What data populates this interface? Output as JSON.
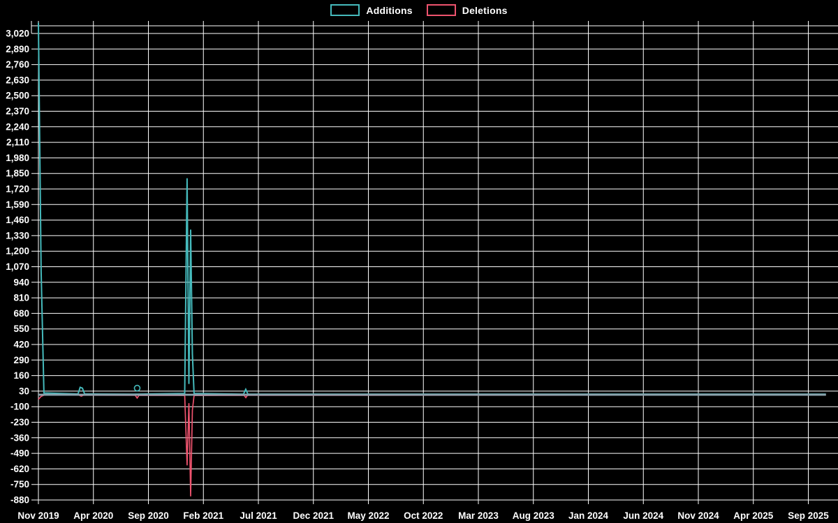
{
  "legend": {
    "additions": "Additions",
    "deletions": "Deletions"
  },
  "colors": {
    "background": "#000000",
    "grid": "#ffffff",
    "text": "#ffffff",
    "additions": "#45babc",
    "deletions": "#ee536e",
    "zero_line": "#8ba2ad"
  },
  "chart_data": {
    "type": "line",
    "title": "",
    "xlabel": "",
    "ylabel": "",
    "legend_position": "top",
    "grid": true,
    "x_unit": "months since Nov 2019",
    "x_ticks": [
      "Nov 2019",
      "Apr 2020",
      "Sep 2020",
      "Feb 2021",
      "Jul 2021",
      "Dec 2021",
      "May 2022",
      "Oct 2022",
      "Mar 2023",
      "Aug 2023",
      "Jan 2024",
      "Jun 2024",
      "Nov 2024",
      "Apr 2025",
      "Sep 2025"
    ],
    "y_ticks": [
      3020,
      2890,
      2760,
      2630,
      2500,
      2370,
      2240,
      2110,
      1980,
      1850,
      1720,
      1590,
      1460,
      1330,
      1200,
      1070,
      940,
      810,
      680,
      550,
      420,
      290,
      160,
      30,
      -100,
      -230,
      -360,
      -490,
      -620,
      -750,
      -880
    ],
    "ylim": [
      -880,
      3110
    ],
    "xlim_months": [
      0,
      71.6
    ],
    "series": [
      {
        "name": "Additions",
        "color": "#45babc",
        "points": [
          [
            0,
            3110
          ],
          [
            0.25,
            1030
          ],
          [
            0.5,
            15
          ],
          [
            3.6,
            6
          ],
          [
            3.8,
            62
          ],
          [
            4.0,
            55
          ],
          [
            4.2,
            6
          ],
          [
            8.6,
            5
          ],
          [
            13.3,
            10
          ],
          [
            13.52,
            1810
          ],
          [
            13.68,
            90
          ],
          [
            13.84,
            1380
          ],
          [
            14.0,
            340
          ],
          [
            14.15,
            10
          ],
          [
            18.65,
            5
          ],
          [
            18.85,
            45
          ],
          [
            19.05,
            5
          ],
          [
            71.6,
            5
          ]
        ]
      },
      {
        "name": "Deletions",
        "color": "#ee536e",
        "points": [
          [
            0,
            -38
          ],
          [
            0.25,
            -14
          ],
          [
            0.5,
            -4
          ],
          [
            3.7,
            -4
          ],
          [
            3.9,
            -12
          ],
          [
            4.1,
            -4
          ],
          [
            8.8,
            -5
          ],
          [
            8.98,
            -28
          ],
          [
            9.15,
            -5
          ],
          [
            13.3,
            -6
          ],
          [
            13.52,
            -590
          ],
          [
            13.68,
            -70
          ],
          [
            13.84,
            -850
          ],
          [
            14.0,
            -130
          ],
          [
            14.15,
            -6
          ],
          [
            18.7,
            -5
          ],
          [
            18.86,
            -24
          ],
          [
            19.0,
            -5
          ],
          [
            71.6,
            -3
          ]
        ]
      }
    ],
    "markers": [
      {
        "series": "Additions",
        "month": 8.98,
        "value": 55
      }
    ]
  }
}
